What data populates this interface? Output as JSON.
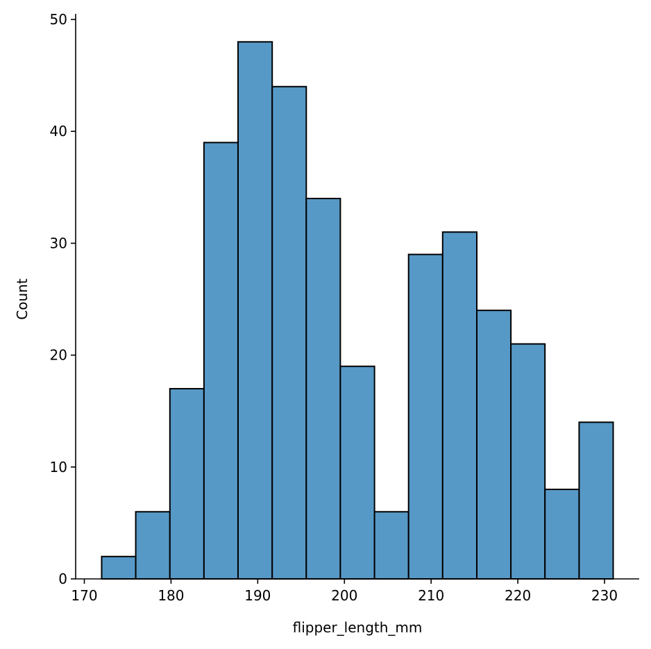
{
  "chart_data": {
    "type": "bar",
    "title": "",
    "xlabel": "flipper_length_mm",
    "ylabel": "Count",
    "bin_edges": [
      172.0,
      175.93,
      179.87,
      183.8,
      187.73,
      191.67,
      195.6,
      199.53,
      203.47,
      207.4,
      211.33,
      215.27,
      219.2,
      223.13,
      227.07,
      231.0
    ],
    "values": [
      2,
      6,
      17,
      39,
      48,
      44,
      34,
      19,
      6,
      29,
      31,
      24,
      21,
      8,
      14
    ],
    "xlim": [
      169,
      234
    ],
    "ylim": [
      0,
      50
    ],
    "xticks": [
      170,
      180,
      190,
      200,
      210,
      220,
      230
    ],
    "yticks": [
      0,
      10,
      20,
      30,
      40,
      50
    ],
    "bar_color": "#5799c6",
    "edge_color": "#000000",
    "grid": false,
    "legend": "none"
  }
}
